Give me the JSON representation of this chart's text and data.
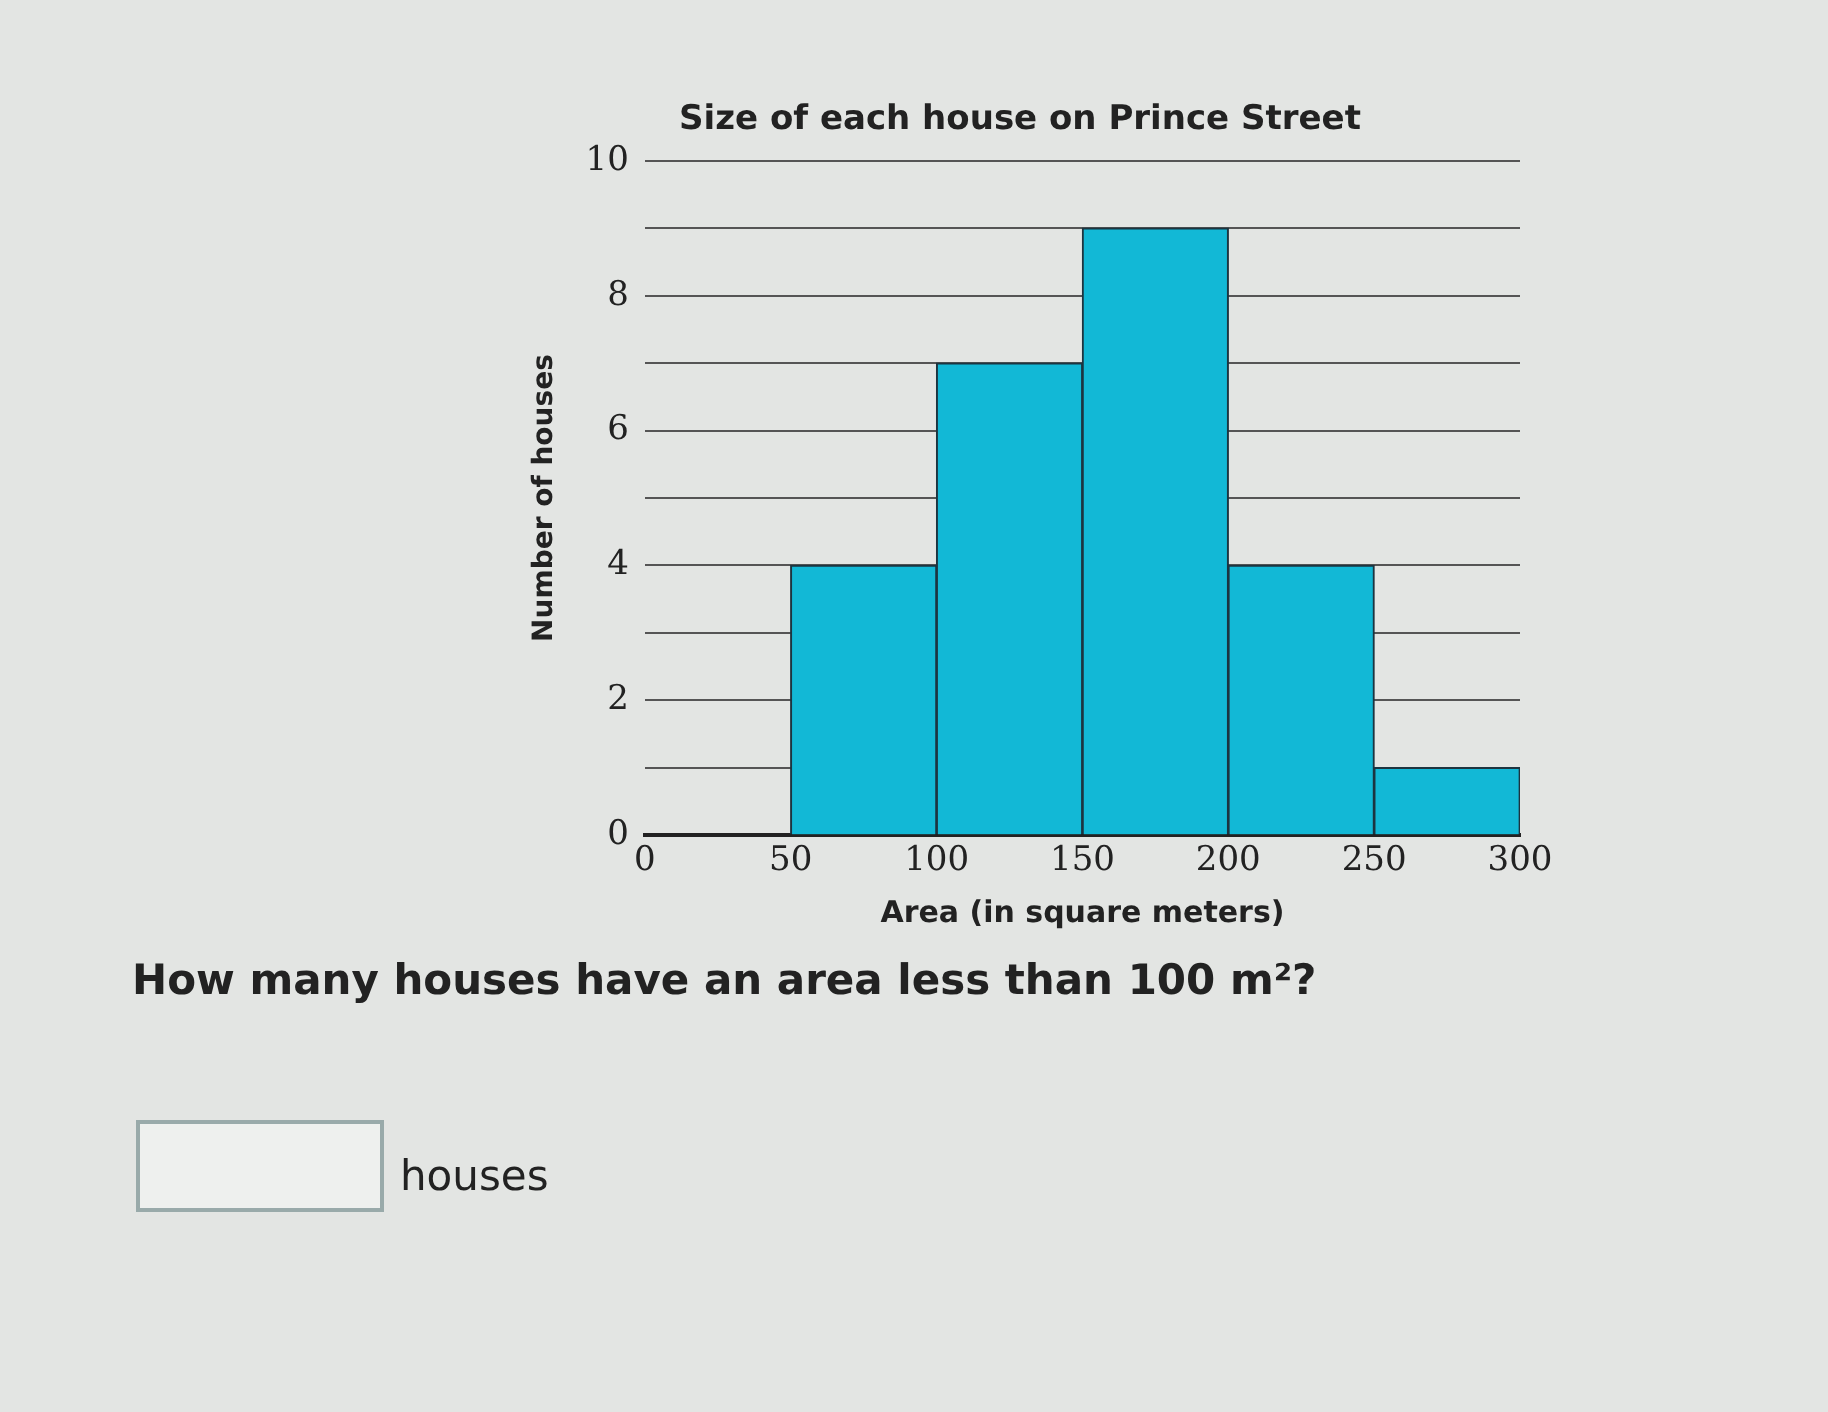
{
  "chart_data": {
    "type": "histogram",
    "title": "Size of each house on Prince Street",
    "xlabel": "Area (in square meters)",
    "ylabel": "Number of houses",
    "bins": [
      0,
      50,
      100,
      150,
      200,
      250,
      300
    ],
    "values": [
      0,
      4,
      7,
      9,
      4,
      1
    ],
    "color": "#12b8d6",
    "xlim": [
      0,
      300
    ],
    "xticks": [
      0,
      50,
      100,
      150,
      200,
      250,
      300
    ],
    "ylim": [
      0,
      10
    ],
    "yticks": [
      0,
      {
        "value": 1,
        "label": null
      },
      2,
      {
        "value": 3,
        "label": null
      },
      4,
      {
        "value": 5,
        "label": null
      },
      6,
      {
        "value": 7,
        "label": null
      },
      8,
      {
        "value": 9,
        "label": null
      },
      10
    ],
    "grid": "y",
    "legend": false,
    "annotations": [
      "How many houses have an area less than 100 m²?",
      "houses"
    ]
  }
}
